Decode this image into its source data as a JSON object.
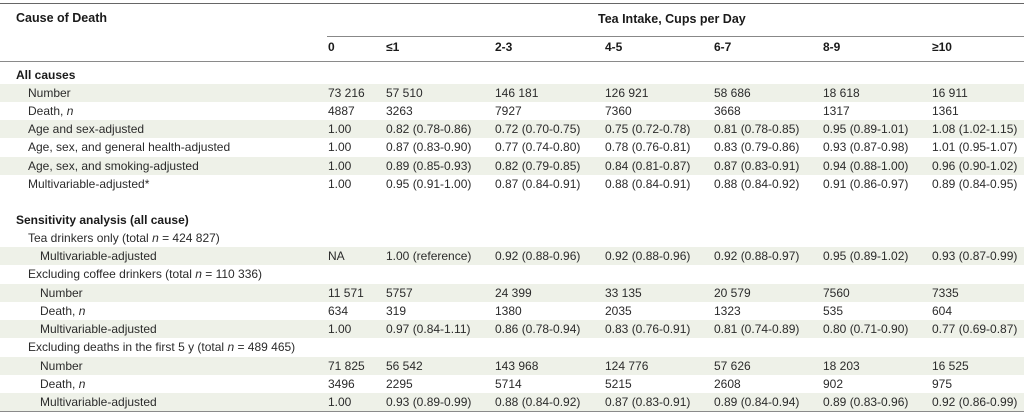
{
  "header": {
    "cause_label": "Cause of Death",
    "group_label": "Tea Intake, Cups per Day",
    "columns": [
      "0",
      "≤1",
      "2-3",
      "4-5",
      "6-7",
      "8-9",
      "≥10"
    ]
  },
  "rows": [
    {
      "label": "All causes",
      "type": "section"
    },
    {
      "label": "Number",
      "values": [
        "73 216",
        "57 510",
        "146 181",
        "126 921",
        "58 686",
        "18 618",
        "16 911"
      ]
    },
    {
      "label": "Death, ",
      "label_italic": "n",
      "values": [
        "4887",
        "3263",
        "7927",
        "7360",
        "3668",
        "1317",
        "1361"
      ]
    },
    {
      "label": "Age and sex-adjusted",
      "values": [
        "1.00",
        "0.82 (0.78-0.86)",
        "0.72 (0.70-0.75)",
        "0.75 (0.72-0.78)",
        "0.81 (0.78-0.85)",
        "0.95 (0.89-1.01)",
        "1.08 (1.02-1.15)"
      ]
    },
    {
      "label": "Age, sex, and general health-adjusted",
      "values": [
        "1.00",
        "0.87 (0.83-0.90)",
        "0.77 (0.74-0.80)",
        "0.78 (0.76-0.81)",
        "0.83 (0.79-0.86)",
        "0.93 (0.87-0.98)",
        "1.01 (0.95-1.07)"
      ]
    },
    {
      "label": "Age, sex, and smoking-adjusted",
      "values": [
        "1.00",
        "0.89 (0.85-0.93)",
        "0.82 (0.79-0.85)",
        "0.84 (0.81-0.87)",
        "0.87 (0.83-0.91)",
        "0.94 (0.88-1.00)",
        "0.96 (0.90-1.02)"
      ]
    },
    {
      "label": "Multivariable-adjusted*",
      "values": [
        "1.00",
        "0.95 (0.91-1.00)",
        "0.87 (0.84-0.91)",
        "0.88 (0.84-0.91)",
        "0.88 (0.84-0.92)",
        "0.91 (0.86-0.97)",
        "0.89 (0.84-0.95)"
      ]
    },
    {
      "label": "",
      "type": "spacer"
    },
    {
      "label": "Sensitivity analysis (all cause)",
      "type": "section"
    },
    {
      "label": "Tea drinkers only (total ",
      "label_italic": "n",
      "label_after": " = 424 827)",
      "type": "subsection"
    },
    {
      "label": "Multivariable-adjusted",
      "values": [
        "NA",
        "1.00 (reference)",
        "0.92 (0.88-0.96)",
        "0.92 (0.88-0.96)",
        "0.92 (0.88-0.97)",
        "0.95 (0.89-1.02)",
        "0.93 (0.87-0.99)"
      ]
    },
    {
      "label": "Excluding coffee drinkers (total ",
      "label_italic": "n",
      "label_after": " = 110 336)",
      "type": "subsection"
    },
    {
      "label": "Number",
      "values": [
        "11 571",
        "5757",
        "24 399",
        "33 135",
        "20 579",
        "7560",
        "7335"
      ]
    },
    {
      "label": "Death, ",
      "label_italic": "n",
      "values": [
        "634",
        "319",
        "1380",
        "2035",
        "1323",
        "535",
        "604"
      ]
    },
    {
      "label": "Multivariable-adjusted",
      "values": [
        "1.00",
        "0.97 (0.84-1.11)",
        "0.86 (0.78-0.94)",
        "0.83 (0.76-0.91)",
        "0.81 (0.74-0.89)",
        "0.80 (0.71-0.90)",
        "0.77 (0.69-0.87)"
      ]
    },
    {
      "label": "Excluding deaths in the first 5 y (total ",
      "label_italic": "n",
      "label_after": " = 489 465)",
      "type": "subsection"
    },
    {
      "label": "Number",
      "values": [
        "71 825",
        "56 542",
        "143 968",
        "124 776",
        "57 626",
        "18 203",
        "16 525"
      ]
    },
    {
      "label": "Death, ",
      "label_italic": "n",
      "values": [
        "3496",
        "2295",
        "5714",
        "5215",
        "2608",
        "902",
        "975"
      ]
    },
    {
      "label": "Multivariable-adjusted",
      "values": [
        "1.00",
        "0.93 (0.89-0.99)",
        "0.88 (0.84-0.92)",
        "0.87 (0.83-0.91)",
        "0.89 (0.84-0.94)",
        "0.89 (0.83-0.96)",
        "0.92 (0.86-0.99)"
      ]
    }
  ]
}
